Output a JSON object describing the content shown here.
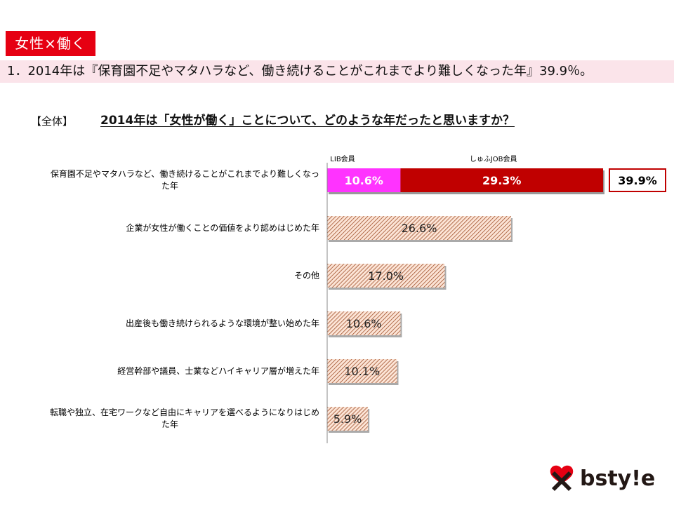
{
  "tag": "女性×働く",
  "headline": "1．2014年は『保育園不足やマタハラなど、働き続けることがこれまでより難しくなった年』39.9％。",
  "section_label": "【全体】",
  "question": "2014年は「女性が働く」ことについて、どのような年だったと思いますか？",
  "logo_text": "bsty!e",
  "colors": {
    "tag_bg": "#e60012",
    "lib": "#ff33ff",
    "shufu": "#c00000",
    "hatch_line": "#a0522d",
    "hatch_bg": "#fce4d6",
    "total_box_border": "#c00000"
  },
  "chart_data": {
    "type": "bar",
    "orientation": "horizontal",
    "categories": [
      "保育園不足やマタハラなど、働き続けることがこれまでより難しくなった年",
      "企業が女性が働くことの価値をより認めはじめた年",
      "その他",
      "出産後も働き続けられるような環境が整い始めた年",
      "経営幹部や議員、士業などハイキャリア層が増えた年",
      "転職や独立、在宅ワークなど自由にキャリアを選べるようになりはじめた年"
    ],
    "values": [
      39.9,
      26.6,
      17.0,
      10.6,
      10.1,
      5.9
    ],
    "value_labels": [
      "39.9%",
      "26.6%",
      "17.0%",
      "10.6%",
      "10.1%",
      "5.9%"
    ],
    "stacked_first_row": {
      "series": [
        {
          "name": "LIB会員",
          "value": 10.6,
          "label": "10.6%"
        },
        {
          "name": "しゅふJOB会員",
          "value": 29.3,
          "label": "29.3%"
        }
      ],
      "total_label": "39.9%"
    },
    "xlim": [
      0,
      40
    ]
  }
}
